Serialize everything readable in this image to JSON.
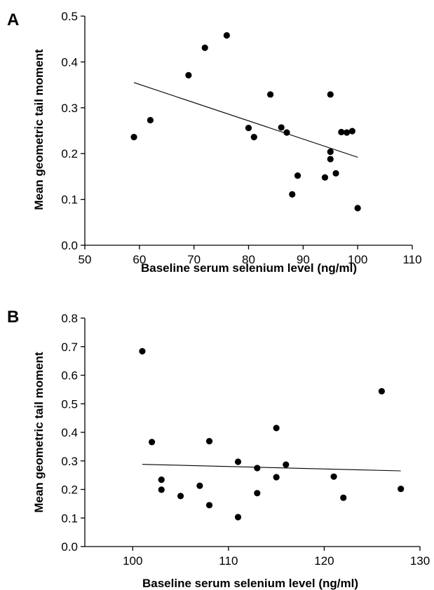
{
  "chart_data": [
    {
      "panel": "A",
      "type": "scatter",
      "xlabel": "Baseline serum selenium level (ng/ml)",
      "ylabel": "Mean geometric tail moment",
      "xlim": [
        50,
        110
      ],
      "ylim": [
        0.0,
        0.5
      ],
      "xticks": [
        50,
        60,
        70,
        80,
        90,
        100,
        110
      ],
      "yticks": [
        "0.0",
        "0.1",
        "0.2",
        "0.3",
        "0.4",
        "0.5"
      ],
      "grid": false,
      "points": [
        {
          "x": 59,
          "y": 0.236
        },
        {
          "x": 62,
          "y": 0.273
        },
        {
          "x": 69,
          "y": 0.371
        },
        {
          "x": 72,
          "y": 0.431
        },
        {
          "x": 76,
          "y": 0.458
        },
        {
          "x": 80,
          "y": 0.256
        },
        {
          "x": 81,
          "y": 0.236
        },
        {
          "x": 84,
          "y": 0.329
        },
        {
          "x": 86,
          "y": 0.257
        },
        {
          "x": 87,
          "y": 0.246
        },
        {
          "x": 88,
          "y": 0.111
        },
        {
          "x": 89,
          "y": 0.152
        },
        {
          "x": 94,
          "y": 0.148
        },
        {
          "x": 95,
          "y": 0.329
        },
        {
          "x": 95,
          "y": 0.204
        },
        {
          "x": 95,
          "y": 0.188
        },
        {
          "x": 96,
          "y": 0.157
        },
        {
          "x": 97,
          "y": 0.247
        },
        {
          "x": 98,
          "y": 0.246
        },
        {
          "x": 99,
          "y": 0.249
        },
        {
          "x": 100,
          "y": 0.081
        }
      ],
      "trendline": {
        "x": [
          59,
          100
        ],
        "y": [
          0.355,
          0.192
        ]
      }
    },
    {
      "panel": "B",
      "type": "scatter",
      "xlabel": "Baseline serum selenium level (ng/ml)",
      "ylabel": "Mean geometric tail moment",
      "xlim": [
        95,
        130
      ],
      "ylim": [
        0.0,
        0.8
      ],
      "xticks": [
        100,
        110,
        120,
        130
      ],
      "yticks": [
        "0.0",
        "0.1",
        "0.2",
        "0.3",
        "0.4",
        "0.5",
        "0.6",
        "0.7",
        "0.8"
      ],
      "grid": false,
      "points": [
        {
          "x": 101,
          "y": 0.684
        },
        {
          "x": 102,
          "y": 0.366
        },
        {
          "x": 103,
          "y": 0.234
        },
        {
          "x": 103,
          "y": 0.199
        },
        {
          "x": 105,
          "y": 0.177
        },
        {
          "x": 107,
          "y": 0.213
        },
        {
          "x": 108,
          "y": 0.369
        },
        {
          "x": 108,
          "y": 0.145
        },
        {
          "x": 111,
          "y": 0.297
        },
        {
          "x": 111,
          "y": 0.103
        },
        {
          "x": 113,
          "y": 0.275
        },
        {
          "x": 113,
          "y": 0.187
        },
        {
          "x": 115,
          "y": 0.415
        },
        {
          "x": 115,
          "y": 0.243
        },
        {
          "x": 116,
          "y": 0.287
        },
        {
          "x": 121,
          "y": 0.245
        },
        {
          "x": 122,
          "y": 0.171
        },
        {
          "x": 126,
          "y": 0.544
        },
        {
          "x": 128,
          "y": 0.202
        }
      ],
      "trendline": {
        "x": [
          101,
          128
        ],
        "y": [
          0.288,
          0.265
        ]
      }
    }
  ]
}
